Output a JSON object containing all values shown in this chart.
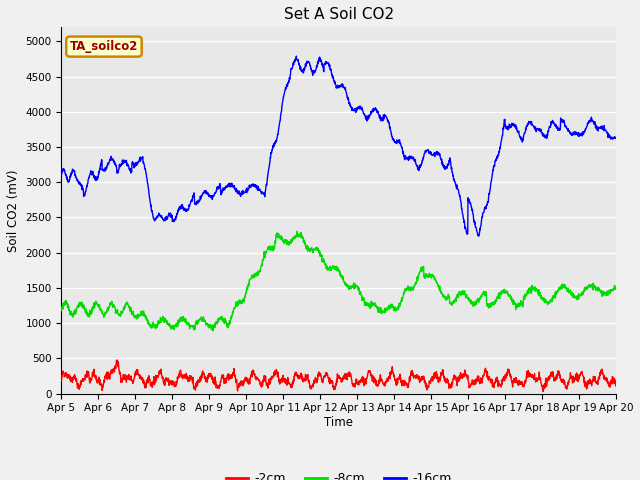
{
  "title": "Set A Soil CO2",
  "ylabel": "Soil CO2 (mV)",
  "xlabel": "Time",
  "ylim": [
    0,
    5200
  ],
  "yticks": [
    0,
    500,
    1000,
    1500,
    2000,
    2500,
    3000,
    3500,
    4000,
    4500,
    5000
  ],
  "xtick_labels": [
    "Apr 5",
    "Apr 6",
    "Apr 7",
    "Apr 8",
    "Apr 9",
    "Apr 10",
    "Apr 11",
    "Apr 12",
    "Apr 13",
    "Apr 14",
    "Apr 15",
    "Apr 16",
    "Apr 17",
    "Apr 18",
    "Apr 19",
    "Apr 20"
  ],
  "legend_label": "TA_soilco2",
  "legend_bg": "#ffffcc",
  "legend_border": "#cc8800",
  "fig_bg": "#f0f0f0",
  "plot_bg": "#e8e8e8",
  "line_2cm_color": "#ff0000",
  "line_8cm_color": "#00dd00",
  "line_16cm_color": "#0000ff",
  "line_width": 1.0,
  "grid_color": "#ffffff",
  "grid_linewidth": 1.0,
  "title_fontsize": 11,
  "tick_fontsize": 7.5,
  "ylabel_fontsize": 8.5,
  "xlabel_fontsize": 8.5
}
